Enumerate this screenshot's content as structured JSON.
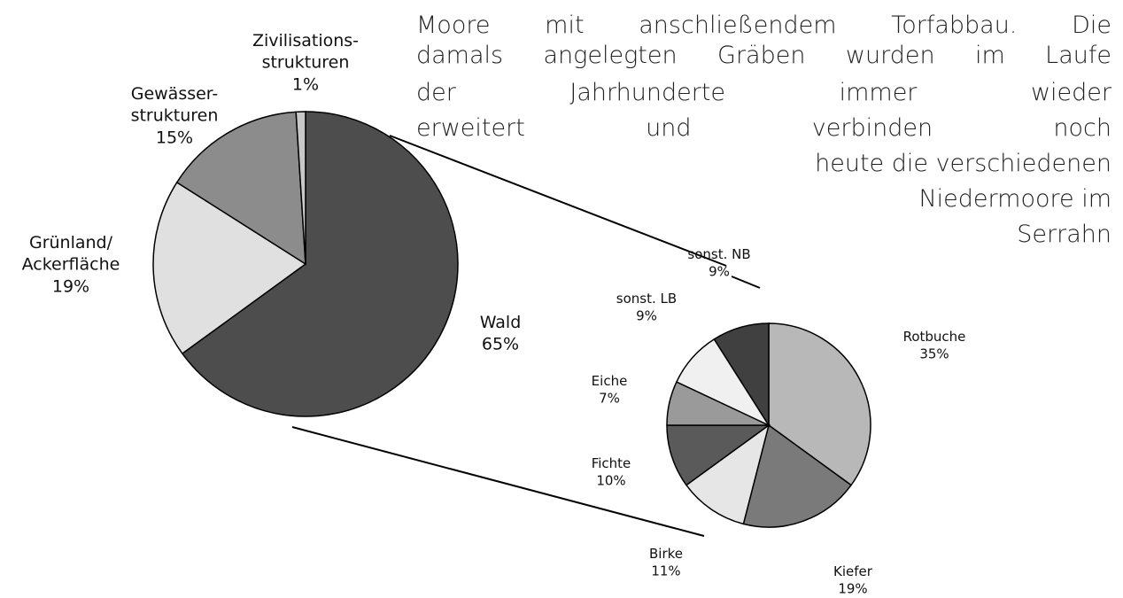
{
  "chart_data": [
    {
      "type": "pie",
      "categories": [
        "Wald",
        "Grünland/\nAckerfläche",
        "Gewässer-\nstrukturen",
        "Zivilisations-\nstrukturen"
      ],
      "values": [
        65,
        19,
        15,
        1
      ],
      "value_labels": [
        "65%",
        "19%",
        "15%",
        "1%"
      ],
      "colors": [
        "#4d4d4d",
        "#e0e0e0",
        "#8c8c8c",
        "#c8c8c8"
      ]
    },
    {
      "type": "pie",
      "categories": [
        "Rotbuche",
        "Kiefer",
        "Birke",
        "Fichte",
        "Eiche",
        "sonst. LB",
        "sonst. NB"
      ],
      "values": [
        35,
        19,
        11,
        10,
        7,
        9,
        9
      ],
      "value_labels": [
        "35%",
        "19%",
        "11%",
        "10%",
        "7%",
        "9%",
        "9%"
      ],
      "colors": [
        "#b8b8b8",
        "#7a7a7a",
        "#e6e6e6",
        "#5a5a5a",
        "#9a9a9a",
        "#f0f0f0",
        "#404040"
      ]
    }
  ],
  "text": {
    "lines": [
      "Moore mit anschließendem Torfabbau. Die",
      "damals angelegten Gräben wurden im Laufe",
      "der Jahrhunderte immer wieder",
      "erweitert und verbinden noch",
      "heute die verschiedenen",
      "Niedermoore im",
      "Serrahn"
    ]
  }
}
